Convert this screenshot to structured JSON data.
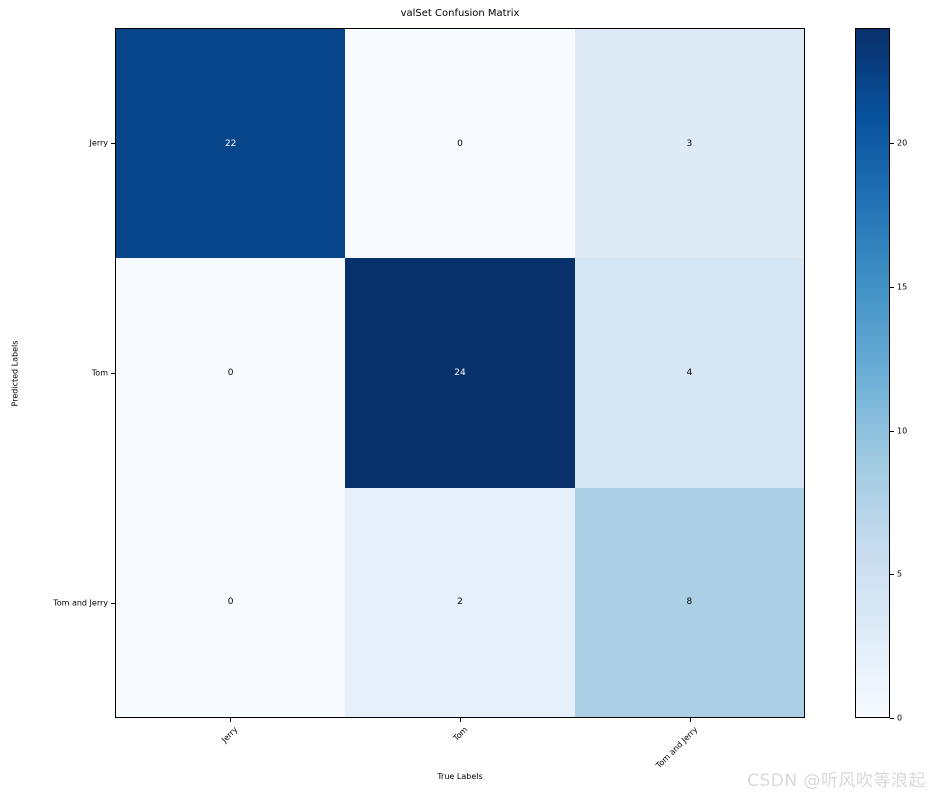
{
  "figure": {
    "watermark": "CSDN @听风吹等浪起"
  },
  "chart_data": {
    "type": "heatmap",
    "title": "valSet Confusion Matrix",
    "xlabel": "True Labels",
    "ylabel": "Predicted Labels",
    "x_categories": [
      "Jerry",
      "Tom",
      "Tom and Jerry"
    ],
    "y_categories": [
      "Jerry",
      "Tom",
      "Tom and Jerry"
    ],
    "matrix": [
      [
        22,
        0,
        3
      ],
      [
        0,
        24,
        4
      ],
      [
        0,
        2,
        8
      ]
    ],
    "colormap": "Blues",
    "value_range": [
      0,
      24
    ],
    "colorbar_ticks": [
      0,
      5,
      10,
      15,
      20
    ],
    "colorbar_position": "right",
    "x_tick_rotation": 45,
    "grid": false,
    "colors": {
      "cmap_stops": [
        "#f7fbff",
        "#deebf7",
        "#c6dbef",
        "#9ecae1",
        "#6baed6",
        "#4292c6",
        "#2171b5",
        "#08519c",
        "#08306b"
      ],
      "cell_text_light": "#ffffff",
      "cell_text_dark": "#000000",
      "axis": "#000000",
      "watermark": "#d9d9d9"
    }
  }
}
